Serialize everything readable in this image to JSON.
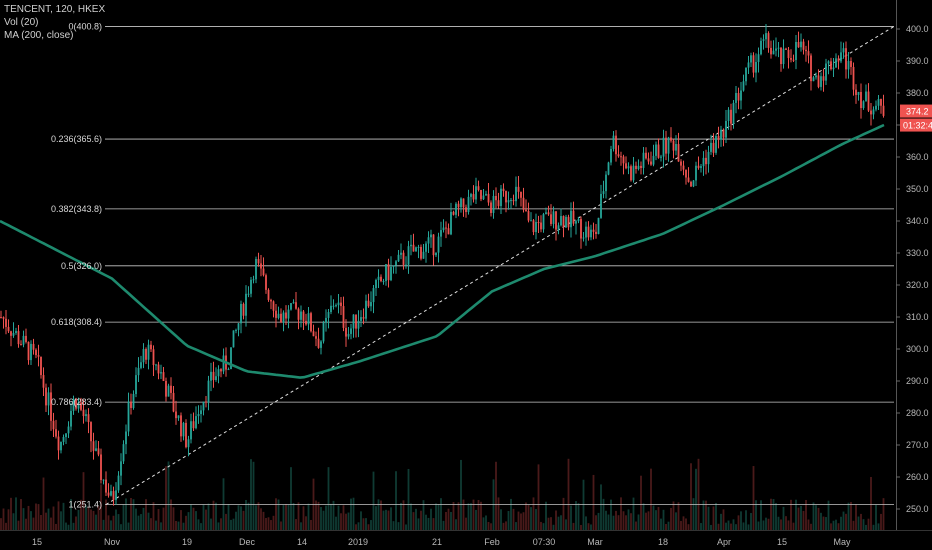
{
  "legend": {
    "symbol_line": "TENCENT, 120, HKEX",
    "vol_line": "Vol (20)",
    "ma_line": "MA (200, close)"
  },
  "price_axis": {
    "ticks": [
      "400.0",
      "390.0",
      "380.0",
      "370.0",
      "360.0",
      "350.0",
      "340.0",
      "330.0",
      "320.0",
      "310.0",
      "300.0",
      "290.0",
      "280.0",
      "270.0",
      "260.0",
      "250.0"
    ],
    "last_price_label": "374.2",
    "countdown_label": "01:32:4"
  },
  "time_axis": {
    "labels": [
      "15",
      "Nov",
      "19",
      "Dec",
      "14",
      "2019",
      "21",
      "Feb",
      "07:30",
      "Mar",
      "18",
      "Apr",
      "15",
      "May"
    ]
  },
  "fib_levels": [
    "0(400.8)",
    "0.236(365.6)",
    "0.382(343.8)",
    "0.5(326.0)",
    "0.618(308.4)",
    "0.786(283.4)",
    "1(251.4)"
  ],
  "colors": {
    "background": "#000000",
    "up_candle": "#26a69a",
    "down_candle": "#ef5350",
    "ma_line": "#1e8a6e",
    "fib_line": "#c8c8c8",
    "last_price_tag": "#ef5350",
    "countdown_tag": "#ef5350"
  },
  "chart_data": {
    "type": "candlestick",
    "title": "TENCENT, 120, HKEX",
    "ylim": [
      247,
      404
    ],
    "y_axis_side": "right",
    "grid": false,
    "fib_retracement": {
      "high": 400.8,
      "low": 251.4,
      "levels": [
        {
          "ratio": 0,
          "price": 400.8
        },
        {
          "ratio": 0.236,
          "price": 365.6
        },
        {
          "ratio": 0.382,
          "price": 343.8
        },
        {
          "ratio": 0.5,
          "price": 326.0
        },
        {
          "ratio": 0.618,
          "price": 308.4
        },
        {
          "ratio": 0.786,
          "price": 283.4
        },
        {
          "ratio": 1,
          "price": 251.4
        }
      ]
    },
    "indicators": [
      "Vol (20)",
      "MA (200, close)"
    ],
    "last_price": 374.2,
    "approx_close_path": [
      {
        "x": "Oct 10",
        "close": 310
      },
      {
        "x": "15",
        "close": 296
      },
      {
        "x": "Oct 18",
        "close": 270
      },
      {
        "x": "Oct 22",
        "close": 285
      },
      {
        "x": "Oct 25",
        "close": 278
      },
      {
        "x": "Oct 30",
        "close": 262
      },
      {
        "x": "Nov",
        "close": 252
      },
      {
        "x": "Nov 5",
        "close": 283
      },
      {
        "x": "Nov 8",
        "close": 300
      },
      {
        "x": "Nov 12",
        "close": 293
      },
      {
        "x": "Nov 14",
        "close": 283
      },
      {
        "x": "19",
        "close": 271
      },
      {
        "x": "Nov 21",
        "close": 283
      },
      {
        "x": "Nov 26",
        "close": 292
      },
      {
        "x": "Nov 28",
        "close": 296
      },
      {
        "x": "Dec 3",
        "close": 327
      },
      {
        "x": "Dec 5",
        "close": 320
      },
      {
        "x": "Dec 7",
        "close": 310
      },
      {
        "x": "14",
        "close": 312
      },
      {
        "x": "Dec 18",
        "close": 302
      },
      {
        "x": "Dec 21",
        "close": 316
      },
      {
        "x": "Dec 27",
        "close": 305
      },
      {
        "x": "2019",
        "close": 310
      },
      {
        "x": "Jan 8",
        "close": 323
      },
      {
        "x": "Jan 14",
        "close": 330
      },
      {
        "x": "21",
        "close": 333
      },
      {
        "x": "Jan 24",
        "close": 342
      },
      {
        "x": "Jan 30",
        "close": 348
      },
      {
        "x": "Feb",
        "close": 345
      },
      {
        "x": "Feb 12",
        "close": 350
      },
      {
        "x": "Feb 18",
        "close": 338
      },
      {
        "x": "Feb 21",
        "close": 340
      },
      {
        "x": "Feb 26",
        "close": 341
      },
      {
        "x": "Mar",
        "close": 335
      },
      {
        "x": "Mar 5",
        "close": 366
      },
      {
        "x": "Mar 8",
        "close": 355
      },
      {
        "x": "18",
        "close": 363
      },
      {
        "x": "Mar 22",
        "close": 365
      },
      {
        "x": "Mar 26",
        "close": 352
      },
      {
        "x": "Mar 29",
        "close": 360
      },
      {
        "x": "Apr",
        "close": 368
      },
      {
        "x": "Apr 8",
        "close": 385
      },
      {
        "x": "Apr 11",
        "close": 396
      },
      {
        "x": "15",
        "close": 390
      },
      {
        "x": "Apr 18",
        "close": 395
      },
      {
        "x": "Apr 24",
        "close": 384
      },
      {
        "x": "Apr 30",
        "close": 389
      },
      {
        "x": "May",
        "close": 393
      },
      {
        "x": "May 6",
        "close": 378
      },
      {
        "x": "May 10",
        "close": 374.2
      }
    ],
    "ma200_path": [
      {
        "x": "Oct 10",
        "value": 340
      },
      {
        "x": "Nov",
        "value": 322
      },
      {
        "x": "19",
        "value": 301
      },
      {
        "x": "Dec",
        "value": 293
      },
      {
        "x": "14",
        "value": 291
      },
      {
        "x": "2019",
        "value": 296
      },
      {
        "x": "21",
        "value": 304
      },
      {
        "x": "Feb",
        "value": 318
      },
      {
        "x": "07:30",
        "value": 325
      },
      {
        "x": "Mar",
        "value": 329
      },
      {
        "x": "18",
        "value": 336
      },
      {
        "x": "Apr",
        "value": 345
      },
      {
        "x": "15",
        "value": 354
      },
      {
        "x": "May",
        "value": 364
      },
      {
        "x": "May 10",
        "value": 370
      }
    ]
  }
}
